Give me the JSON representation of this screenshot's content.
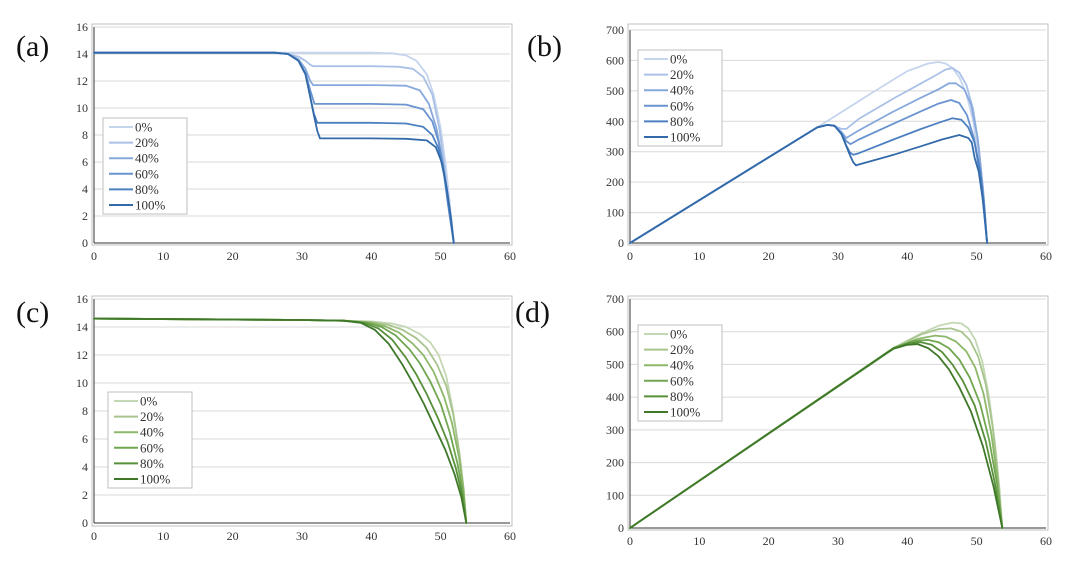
{
  "chart_data": [
    {
      "panel_label": "(a)",
      "type": "line",
      "xlim": [
        0,
        60
      ],
      "ylim": [
        0,
        16
      ],
      "xticks": [
        0,
        10,
        20,
        30,
        40,
        50,
        60
      ],
      "yticks": [
        0,
        2,
        4,
        6,
        8,
        10,
        12,
        14,
        16
      ],
      "grid": true,
      "legend_position": "middle-left",
      "series": [
        {
          "name": "0%",
          "color": "#c6d5ee",
          "x": [
            0,
            26,
            35,
            40,
            43,
            45,
            46.5,
            48,
            49,
            50,
            50.8,
            51.5,
            51.9
          ],
          "y": [
            14.1,
            14.1,
            14.1,
            14.1,
            14.05,
            13.9,
            13.5,
            12.5,
            11,
            8.5,
            5.5,
            2,
            0
          ]
        },
        {
          "name": "20%",
          "color": "#a9c1e6",
          "x": [
            0,
            26,
            28,
            29.5,
            30.5,
            31.2,
            31.6,
            35,
            40,
            44,
            46,
            47.5,
            48.8,
            49.8,
            50.6,
            51.3,
            51.9
          ],
          "y": [
            14.1,
            14.1,
            14.0,
            13.8,
            13.5,
            13.2,
            13.1,
            13.1,
            13.1,
            13.05,
            12.9,
            12.3,
            11,
            8.5,
            5.5,
            2,
            0
          ]
        },
        {
          "name": "40%",
          "color": "#86a8dc",
          "x": [
            0,
            26,
            28,
            29.5,
            30.5,
            31.2,
            31.6,
            35,
            40,
            45,
            47,
            48.3,
            49.4,
            50.3,
            51,
            51.9
          ],
          "y": [
            14.1,
            14.1,
            14.0,
            13.6,
            12.9,
            12.0,
            11.7,
            11.7,
            11.7,
            11.65,
            11.3,
            10.3,
            8.5,
            6,
            3,
            0
          ]
        },
        {
          "name": "60%",
          "color": "#6a94cf",
          "x": [
            0,
            26,
            28,
            29.5,
            30.5,
            31.2,
            31.8,
            35,
            40,
            45,
            47.5,
            48.8,
            49.7,
            50.5,
            51.2,
            51.9
          ],
          "y": [
            14.1,
            14.1,
            14.0,
            13.5,
            12.6,
            11.3,
            10.3,
            10.3,
            10.3,
            10.25,
            9.9,
            9.0,
            7.5,
            5.3,
            2.6,
            0
          ]
        },
        {
          "name": "80%",
          "color": "#4d80c1",
          "x": [
            0,
            26,
            28,
            29.5,
            30.5,
            31.2,
            31.7,
            32.2,
            35,
            40,
            45,
            47.5,
            48.8,
            49.7,
            50.5,
            51.2,
            51.9
          ],
          "y": [
            14.1,
            14.1,
            14.0,
            13.5,
            12.5,
            10.8,
            9.6,
            8.9,
            8.9,
            8.9,
            8.85,
            8.6,
            8.0,
            7.0,
            5.0,
            2.5,
            0
          ]
        },
        {
          "name": "100%",
          "color": "#336aaa",
          "x": [
            0,
            26,
            28,
            29.5,
            30.5,
            31.2,
            31.7,
            32.2,
            32.6,
            35,
            40,
            45,
            48,
            49.3,
            50.2,
            50.9,
            51.5,
            51.9
          ],
          "y": [
            14.1,
            14.1,
            14.0,
            13.5,
            12.5,
            10.8,
            9.5,
            8.3,
            7.75,
            7.75,
            7.75,
            7.72,
            7.6,
            7.1,
            5.9,
            4.0,
            1.8,
            0
          ]
        }
      ]
    },
    {
      "panel_label": "(b)",
      "type": "line",
      "xlim": [
        0,
        60
      ],
      "ylim": [
        0,
        700
      ],
      "xticks": [
        0,
        10,
        20,
        30,
        40,
        50,
        60
      ],
      "yticks": [
        0,
        100,
        200,
        300,
        400,
        500,
        600,
        700
      ],
      "grid": true,
      "legend_position": "top-left",
      "series": [
        {
          "name": "0%",
          "color": "#c6d5ee",
          "x": [
            0,
            27,
            35,
            40,
            43,
            44.5,
            45.5,
            46.5,
            47.5,
            48.5,
            49.5,
            50.3,
            51,
            51.5
          ],
          "y": [
            0,
            380,
            495,
            565,
            590,
            595,
            590,
            575,
            545,
            490,
            400,
            280,
            130,
            0
          ]
        },
        {
          "name": "20%",
          "color": "#a9c1e6",
          "x": [
            0,
            27,
            28.5,
            29.5,
            30.5,
            31.2,
            33,
            38,
            42,
            44,
            45.5,
            46.5,
            47.5,
            48.5,
            49.5,
            50.3,
            51,
            51.5
          ],
          "y": [
            0,
            380,
            388,
            385,
            375,
            375,
            408,
            475,
            525,
            550,
            570,
            575,
            560,
            520,
            440,
            320,
            160,
            0
          ]
        },
        {
          "name": "40%",
          "color": "#86a8dc",
          "x": [
            0,
            27,
            28.5,
            29.5,
            30.5,
            31.2,
            33,
            38,
            42,
            44.5,
            46,
            47,
            48.2,
            49.2,
            50.1,
            50.9,
            51.5
          ],
          "y": [
            0,
            380,
            388,
            385,
            365,
            345,
            370,
            432,
            478,
            505,
            525,
            525,
            505,
            455,
            350,
            180,
            0
          ]
        },
        {
          "name": "60%",
          "color": "#6a94cf",
          "x": [
            0,
            27,
            28.5,
            29.5,
            30.5,
            31.2,
            31.8,
            33,
            38,
            42,
            44.5,
            46.3,
            47.5,
            48.6,
            49.6,
            50.5,
            51.1,
            51.5
          ],
          "y": [
            0,
            380,
            388,
            385,
            360,
            335,
            325,
            340,
            392,
            433,
            458,
            470,
            460,
            420,
            345,
            220,
            95,
            0
          ]
        },
        {
          "name": "80%",
          "color": "#4d80c1",
          "x": [
            0,
            27,
            28.5,
            29.5,
            30.5,
            31.2,
            31.7,
            32.2,
            33,
            38,
            42,
            44.5,
            46.5,
            47.8,
            48.8,
            49.7,
            50.5,
            51.1,
            51.5
          ],
          "y": [
            0,
            380,
            388,
            385,
            358,
            320,
            298,
            290,
            295,
            340,
            375,
            395,
            410,
            405,
            380,
            330,
            240,
            120,
            0
          ]
        },
        {
          "name": "100%",
          "color": "#336aaa",
          "x": [
            0,
            27,
            28.5,
            29.5,
            30.5,
            31.2,
            31.7,
            32.2,
            32.6,
            33,
            38,
            42,
            45,
            47.5,
            48.8,
            49.3,
            49.7,
            50.3,
            50.9,
            51.5
          ],
          "y": [
            0,
            380,
            388,
            385,
            358,
            318,
            290,
            265,
            255,
            258,
            290,
            318,
            340,
            355,
            345,
            330,
            280,
            235,
            140,
            0
          ]
        }
      ]
    },
    {
      "panel_label": "(c)",
      "type": "line",
      "xlim": [
        0,
        60
      ],
      "ylim": [
        0,
        16
      ],
      "xticks": [
        0,
        10,
        20,
        30,
        40,
        50,
        60
      ],
      "yticks": [
        0,
        2,
        4,
        6,
        8,
        10,
        12,
        14,
        16
      ],
      "grid": true,
      "legend_position": "bottom-left",
      "series": [
        {
          "name": "0%",
          "color": "#c3d7b3",
          "x": [
            0,
            30,
            36,
            40,
            43,
            45,
            47,
            48.5,
            49.7,
            50.8,
            51.8,
            52.7,
            53.3,
            53.7
          ],
          "y": [
            14.6,
            14.5,
            14.45,
            14.4,
            14.25,
            14.0,
            13.5,
            12.9,
            12.0,
            10.5,
            8.0,
            5.0,
            2.5,
            0
          ]
        },
        {
          "name": "20%",
          "color": "#a7c48d",
          "x": [
            0,
            30,
            36,
            40,
            42.5,
            44.5,
            46.5,
            48,
            49.5,
            50.8,
            51.8,
            52.7,
            53.3,
            53.7
          ],
          "y": [
            14.6,
            14.5,
            14.45,
            14.35,
            14.15,
            13.8,
            13.2,
            12.5,
            11.3,
            9.8,
            7.8,
            5.0,
            2.5,
            0
          ]
        },
        {
          "name": "40%",
          "color": "#8db86a",
          "x": [
            0,
            30,
            36,
            40,
            42,
            44,
            46,
            47.5,
            49,
            50.5,
            51.6,
            52.6,
            53.3,
            53.7
          ],
          "y": [
            14.6,
            14.5,
            14.45,
            14.3,
            14.05,
            13.6,
            12.8,
            12.0,
            10.8,
            9.0,
            7.2,
            4.8,
            2.4,
            0
          ]
        },
        {
          "name": "60%",
          "color": "#70a650",
          "x": [
            0,
            30,
            36,
            39.5,
            41.5,
            43.5,
            45.5,
            47,
            48.5,
            50,
            51.3,
            52.4,
            53.2,
            53.7
          ],
          "y": [
            14.6,
            14.5,
            14.45,
            14.3,
            14.0,
            13.4,
            12.4,
            11.4,
            10.1,
            8.5,
            6.5,
            4.3,
            2.2,
            0
          ]
        },
        {
          "name": "80%",
          "color": "#58903a",
          "x": [
            0,
            30,
            36,
            39,
            41,
            43,
            45,
            46.5,
            48,
            49.6,
            51,
            52.2,
            53.1,
            53.7
          ],
          "y": [
            14.6,
            14.5,
            14.45,
            14.3,
            13.9,
            13.1,
            11.8,
            10.6,
            9.2,
            7.5,
            5.8,
            3.9,
            2.0,
            0
          ]
        },
        {
          "name": "100%",
          "color": "#3e7828",
          "x": [
            0,
            30,
            36,
            38.5,
            40.5,
            42.5,
            44.5,
            46,
            47.6,
            49.2,
            50.7,
            52,
            53,
            53.7
          ],
          "y": [
            14.6,
            14.5,
            14.45,
            14.3,
            13.8,
            12.8,
            11.3,
            10.0,
            8.5,
            6.8,
            5.2,
            3.5,
            1.8,
            0
          ]
        }
      ]
    },
    {
      "panel_label": "(d)",
      "type": "line",
      "xlim": [
        0,
        60
      ],
      "ylim": [
        0,
        700
      ],
      "xticks": [
        0,
        10,
        20,
        30,
        40,
        50,
        60
      ],
      "yticks": [
        0,
        100,
        200,
        300,
        400,
        500,
        600,
        700
      ],
      "grid": true,
      "legend_position": "top-left",
      "series": [
        {
          "name": "0%",
          "color": "#c3d7b3",
          "x": [
            0,
            38,
            42,
            44.5,
            46.5,
            47.8,
            48.8,
            49.8,
            50.8,
            51.8,
            52.7,
            53.3,
            53.7
          ],
          "y": [
            0,
            550,
            595,
            618,
            628,
            625,
            610,
            575,
            510,
            400,
            250,
            120,
            0
          ]
        },
        {
          "name": "20%",
          "color": "#a7c48d",
          "x": [
            0,
            38,
            42,
            44.5,
            46.3,
            47.8,
            49,
            50.2,
            51.3,
            52.3,
            53,
            53.7
          ],
          "y": [
            0,
            550,
            592,
            608,
            610,
            600,
            575,
            525,
            440,
            310,
            170,
            0
          ]
        },
        {
          "name": "40%",
          "color": "#8db86a",
          "x": [
            0,
            38,
            41.5,
            44,
            45.5,
            47,
            48.5,
            49.8,
            51,
            52.1,
            53,
            53.7
          ],
          "y": [
            0,
            550,
            578,
            588,
            585,
            570,
            540,
            490,
            410,
            290,
            150,
            0
          ]
        },
        {
          "name": "60%",
          "color": "#70a650",
          "x": [
            0,
            38,
            41,
            43,
            44.5,
            46,
            47.5,
            49,
            50.5,
            51.8,
            52.9,
            53.7
          ],
          "y": [
            0,
            550,
            572,
            575,
            568,
            550,
            515,
            460,
            380,
            270,
            140,
            0
          ]
        },
        {
          "name": "80%",
          "color": "#58903a",
          "x": [
            0,
            38,
            40.5,
            42,
            43.5,
            45,
            46.5,
            48,
            49.7,
            51.3,
            52.6,
            53.7
          ],
          "y": [
            0,
            550,
            566,
            568,
            560,
            538,
            500,
            450,
            375,
            265,
            140,
            0
          ]
        },
        {
          "name": "100%",
          "color": "#3e7828",
          "x": [
            0,
            38,
            40,
            41.5,
            43,
            44.5,
            46,
            47.5,
            49.2,
            50.9,
            52.4,
            53.7
          ],
          "y": [
            0,
            548,
            560,
            562,
            550,
            525,
            485,
            430,
            355,
            250,
            130,
            0
          ]
        }
      ]
    }
  ]
}
